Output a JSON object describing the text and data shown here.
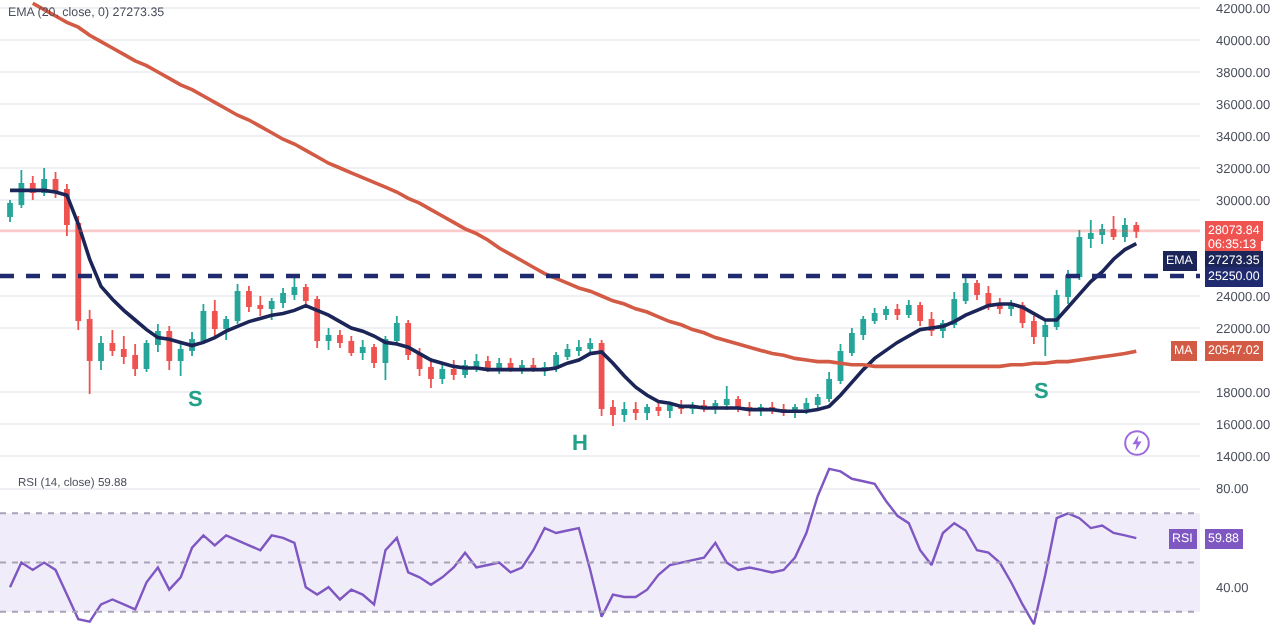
{
  "chart_data": [
    {
      "type": "candlestick",
      "annotations": [
        "EMA (20, close, 0) 27273.35",
        "06:35:13",
        "27273.35",
        "20547.02",
        "S",
        "H",
        "S"
      ],
      "categories": [
        null,
        null,
        null,
        null,
        null,
        null,
        null,
        null,
        null,
        null,
        null,
        null,
        null,
        null,
        null,
        null,
        null,
        null,
        null,
        null,
        null,
        null,
        null,
        null,
        null,
        null,
        null,
        null,
        null,
        null,
        null,
        null,
        null,
        null,
        null,
        null,
        null,
        null,
        null,
        null,
        null,
        null,
        null,
        null,
        null,
        null,
        null,
        null,
        null,
        null,
        null,
        null,
        null,
        null,
        null,
        null,
        null,
        null,
        null,
        null,
        null,
        null,
        null,
        null,
        null,
        null,
        null,
        null,
        null,
        null,
        null,
        null,
        null,
        null,
        null,
        null,
        null,
        null,
        null,
        null,
        null,
        null,
        null,
        null,
        null,
        null,
        null,
        null,
        null,
        null,
        null,
        null,
        null,
        null,
        null,
        null,
        null,
        null,
        null,
        null
      ],
      "ohlc": [
        [
          29000,
          30000,
          28625,
          29750
        ],
        [
          29750,
          31875,
          29500,
          31000
        ],
        [
          31000,
          31500,
          30000,
          30500
        ],
        [
          30500,
          32000,
          30250,
          31250
        ],
        [
          31250,
          31750,
          30125,
          30625
        ],
        [
          30625,
          31000,
          27750,
          28500
        ],
        [
          28500,
          29000,
          21875,
          22500
        ],
        [
          22500,
          23125,
          17875,
          20000
        ],
        [
          20000,
          21500,
          19375,
          21000
        ],
        [
          21000,
          21875,
          20250,
          20625
        ],
        [
          20625,
          21500,
          19750,
          20250
        ],
        [
          20250,
          21000,
          19000,
          19500
        ],
        [
          19500,
          21250,
          19250,
          21000
        ],
        [
          21000,
          22250,
          20500,
          21750
        ],
        [
          21750,
          22125,
          19375,
          20000
        ],
        [
          20000,
          21000,
          19000,
          20625
        ],
        [
          20625,
          21750,
          20250,
          21250
        ],
        [
          21250,
          23500,
          21000,
          23000
        ],
        [
          23000,
          23750,
          21500,
          22000
        ],
        [
          22000,
          22750,
          21250,
          22500
        ],
        [
          22500,
          24750,
          22250,
          24250
        ],
        [
          24250,
          24625,
          23000,
          23375
        ],
        [
          23375,
          24000,
          22750,
          23250
        ],
        [
          23250,
          23875,
          22500,
          23625
        ],
        [
          23625,
          24500,
          23250,
          24125
        ],
        [
          24125,
          25125,
          23750,
          24500
        ],
        [
          24500,
          24750,
          23250,
          23750
        ],
        [
          23750,
          24000,
          20750,
          21250
        ],
        [
          21250,
          22000,
          20625,
          21500
        ],
        [
          21500,
          21875,
          20750,
          21125
        ],
        [
          21125,
          21500,
          20250,
          20500
        ],
        [
          20500,
          21250,
          20000,
          20750
        ],
        [
          20750,
          21000,
          19500,
          19875
        ],
        [
          19875,
          21500,
          18750,
          21250
        ],
        [
          21250,
          22750,
          21000,
          22250
        ],
        [
          22250,
          22500,
          20000,
          20375
        ],
        [
          20375,
          20750,
          19000,
          19500
        ],
        [
          19500,
          20125,
          18250,
          18875
        ],
        [
          18875,
          19750,
          18500,
          19375
        ],
        [
          19375,
          20000,
          18750,
          19125
        ],
        [
          19125,
          20000,
          18875,
          19625
        ],
        [
          19625,
          20375,
          19250,
          19875
        ],
        [
          19875,
          20250,
          19250,
          19500
        ],
        [
          19500,
          20125,
          19125,
          19750
        ],
        [
          19750,
          20125,
          19250,
          19500
        ],
        [
          19500,
          20000,
          19125,
          19625
        ],
        [
          19625,
          20125,
          19250,
          19375
        ],
        [
          19375,
          19875,
          19000,
          19500
        ],
        [
          19500,
          20500,
          19250,
          20250
        ],
        [
          20250,
          21000,
          20000,
          20625
        ],
        [
          20625,
          21250,
          20250,
          20750
        ],
        [
          20750,
          21375,
          20375,
          21000
        ],
        [
          21000,
          21250,
          16500,
          17000
        ],
        [
          17000,
          17500,
          15875,
          16625
        ],
        [
          16625,
          17375,
          16125,
          16875
        ],
        [
          16875,
          17375,
          16250,
          16750
        ],
        [
          16750,
          17250,
          16250,
          17000
        ],
        [
          17000,
          17500,
          16500,
          16875
        ],
        [
          16875,
          17375,
          16375,
          17125
        ],
        [
          17125,
          17500,
          16625,
          17000
        ],
        [
          17000,
          17375,
          16625,
          17125
        ],
        [
          17125,
          17500,
          16750,
          17000
        ],
        [
          17000,
          17500,
          16625,
          17250
        ],
        [
          17250,
          18375,
          16875,
          17500
        ],
        [
          17500,
          17750,
          16750,
          17000
        ],
        [
          17000,
          17375,
          16500,
          16875
        ],
        [
          16875,
          17250,
          16500,
          17000
        ],
        [
          17000,
          17375,
          16625,
          16875
        ],
        [
          16875,
          17250,
          16500,
          16750
        ],
        [
          16750,
          17250,
          16375,
          17000
        ],
        [
          17000,
          17625,
          16625,
          17250
        ],
        [
          17250,
          17875,
          16875,
          17625
        ],
        [
          17625,
          19250,
          17375,
          18750
        ],
        [
          18750,
          21000,
          18500,
          20500
        ],
        [
          20500,
          22000,
          20250,
          21625
        ],
        [
          21625,
          22750,
          21250,
          22500
        ],
        [
          22500,
          23250,
          22250,
          22875
        ],
        [
          22875,
          23375,
          22500,
          23125
        ],
        [
          23125,
          23500,
          22500,
          22875
        ],
        [
          22875,
          23750,
          22625,
          23375
        ],
        [
          23375,
          23625,
          22125,
          22500
        ],
        [
          22500,
          23000,
          21500,
          21875
        ],
        [
          21875,
          22500,
          21375,
          22250
        ],
        [
          22250,
          24250,
          22000,
          23750
        ],
        [
          23750,
          25375,
          23500,
          24750
        ],
        [
          24750,
          25000,
          23750,
          24125
        ],
        [
          24125,
          24625,
          23125,
          23500
        ],
        [
          23500,
          23875,
          22875,
          23250
        ],
        [
          23250,
          23750,
          22750,
          23375
        ],
        [
          23375,
          23625,
          22000,
          22375
        ],
        [
          22375,
          22750,
          21000,
          21500
        ],
        [
          21500,
          22500,
          20250,
          22125
        ],
        [
          22125,
          24375,
          21875,
          24000
        ],
        [
          24000,
          25625,
          23500,
          25250
        ],
        [
          25250,
          28125,
          25000,
          27625
        ],
        [
          27625,
          28750,
          27000,
          27875
        ],
        [
          27875,
          28500,
          27250,
          28125
        ],
        [
          28125,
          29000,
          27500,
          27750
        ],
        [
          27750,
          28875,
          27375,
          28375
        ],
        [
          28375,
          28625,
          27625,
          28073.84
        ]
      ],
      "series": [
        {
          "name": "EMA",
          "type": "line",
          "color": "#1c2557",
          "values": [
            30600,
            30600,
            30600,
            30600,
            30500,
            30300,
            28500,
            26300,
            24600,
            23800,
            23100,
            22500,
            21900,
            21400,
            21300,
            21100,
            20900,
            21100,
            21400,
            21800,
            22100,
            22400,
            22600,
            22800,
            22900,
            23100,
            23400,
            23100,
            22800,
            22400,
            22000,
            21800,
            21500,
            21100,
            21000,
            20800,
            20400,
            20000,
            19800,
            19600,
            19500,
            19500,
            19400,
            19400,
            19400,
            19400,
            19400,
            19400,
            19500,
            19800,
            20000,
            20400,
            20500,
            19800,
            19000,
            18300,
            17800,
            17400,
            17300,
            17100,
            17100,
            17000,
            17000,
            17000,
            17000,
            16900,
            16900,
            16900,
            16800,
            16800,
            16800,
            16900,
            17100,
            17800,
            18600,
            19400,
            20100,
            20600,
            21100,
            21500,
            21900,
            22000,
            22100,
            22400,
            22800,
            23100,
            23400,
            23500,
            23500,
            23300,
            22900,
            22500,
            22500,
            23300,
            24100,
            24900,
            25500,
            26300,
            26900,
            27273.35
          ]
        },
        {
          "name": "MA",
          "type": "line",
          "color": "#d35b45",
          "values": [
            null,
            null,
            42300,
            41900,
            41500,
            41100,
            40800,
            40300,
            39900,
            39500,
            39100,
            38700,
            38400,
            38000,
            37600,
            37200,
            36900,
            36500,
            36100,
            35700,
            35300,
            35000,
            34600,
            34200,
            33800,
            33500,
            33100,
            32700,
            32300,
            32000,
            31700,
            31400,
            31100,
            30800,
            30500,
            30100,
            29800,
            29400,
            29000,
            28600,
            28200,
            27900,
            27500,
            27000,
            26600,
            26200,
            25800,
            25400,
            25100,
            24800,
            24500,
            24300,
            24000,
            23700,
            23500,
            23200,
            23000,
            22700,
            22400,
            22200,
            21900,
            21700,
            21400,
            21200,
            21000,
            20800,
            20600,
            20400,
            20300,
            20100,
            20000,
            19900,
            19900,
            19800,
            19700,
            19700,
            19600,
            19600,
            19600,
            19600,
            19600,
            19600,
            19600,
            19600,
            19600,
            19600,
            19600,
            19600,
            19700,
            19700,
            19800,
            19800,
            19900,
            19900,
            20000,
            20100,
            20200,
            20300,
            20400,
            20547.02
          ]
        }
      ],
      "ylim": [
        13500,
        42500
      ],
      "yticks": [
        {
          "value": 42000,
          "label": "42000.00"
        },
        {
          "value": 40000,
          "label": "40000.00"
        },
        {
          "value": 38000,
          "label": "38000.00"
        },
        {
          "value": 36000,
          "label": "36000.00"
        },
        {
          "value": 34000,
          "label": "34000.00"
        },
        {
          "value": 32000,
          "label": "32000.00"
        },
        {
          "value": 30000,
          "label": "30000.00"
        },
        {
          "value": 24000,
          "label": "24000.00"
        },
        {
          "value": 22000,
          "label": "22000.00"
        },
        {
          "value": 18000,
          "label": "18000.00"
        },
        {
          "value": 16000,
          "label": "16000.00"
        },
        {
          "value": 14000,
          "label": "14000.00"
        }
      ],
      "ref_lines": [
        {
          "axis": "y",
          "value": 28073.84,
          "label": "28073.84",
          "color": "#ef5350",
          "line_style": "solid"
        },
        {
          "axis": "y",
          "value": 25250,
          "label": "25250.00",
          "color": "#1f2b6e",
          "line_style": "dashed"
        }
      ],
      "grid": "y",
      "legend": "right"
    },
    {
      "type": "line",
      "annotations": [
        "RSI (14, close) 59.88",
        "59.88"
      ],
      "categories": [
        null,
        null,
        null,
        null,
        null,
        null,
        null,
        null,
        null,
        null,
        null,
        null,
        null,
        null,
        null,
        null,
        null,
        null,
        null,
        null,
        null,
        null,
        null,
        null,
        null,
        null,
        null,
        null,
        null,
        null,
        null,
        null,
        null,
        null,
        null,
        null,
        null,
        null,
        null,
        null,
        null,
        null,
        null,
        null,
        null,
        null,
        null,
        null,
        null,
        null,
        null,
        null,
        null,
        null,
        null,
        null,
        null,
        null,
        null,
        null,
        null,
        null,
        null,
        null,
        null,
        null,
        null,
        null,
        null,
        null,
        null,
        null,
        null,
        null,
        null,
        null,
        null,
        null,
        null,
        null,
        null,
        null,
        null,
        null,
        null,
        null,
        null,
        null,
        null,
        null,
        null,
        null,
        null,
        null,
        null,
        null,
        null,
        null,
        null,
        null
      ],
      "series": [
        {
          "name": "RSI",
          "color": "#7e57c2",
          "values": [
            40,
            50,
            47,
            50,
            47,
            37,
            27,
            26,
            33,
            35,
            33,
            31,
            42,
            48,
            39,
            44,
            56,
            61,
            57,
            61,
            59,
            57,
            55,
            61,
            60,
            58,
            40,
            37,
            40,
            35,
            39,
            37,
            33,
            55,
            60,
            46,
            44,
            41,
            44,
            48,
            54,
            48,
            49,
            50,
            46,
            48,
            55,
            64,
            62,
            63,
            64,
            47,
            28,
            37,
            36,
            36,
            39,
            45,
            49,
            50,
            51,
            52,
            58,
            50,
            47,
            48,
            47,
            46,
            47,
            52,
            62,
            77,
            88,
            87,
            84,
            83,
            82,
            75,
            69,
            66,
            55,
            49,
            62,
            66,
            63,
            55,
            54,
            50,
            42,
            33,
            25,
            45,
            68,
            70,
            68,
            64,
            65,
            62,
            61,
            59.88
          ]
        }
      ],
      "ylim": [
        21,
        90
      ],
      "yticks": [
        {
          "value": 40,
          "label": "40.00"
        },
        {
          "value": 80,
          "label": "80.00"
        }
      ],
      "ref_lines": [
        {
          "axis": "y",
          "value": 70,
          "color": "#a9a3b8",
          "line_style": "dashed"
        },
        {
          "axis": "y",
          "value": 50,
          "color": "#a9a3b8",
          "line_style": "dashed"
        },
        {
          "axis": "y",
          "value": 30,
          "color": "#a9a3b8",
          "line_style": "dashed"
        }
      ],
      "bands": [
        {
          "axis": "y",
          "from": 30,
          "to": 70,
          "color": "#f1ecfa"
        }
      ],
      "grid": "y",
      "legend": "right"
    }
  ]
}
